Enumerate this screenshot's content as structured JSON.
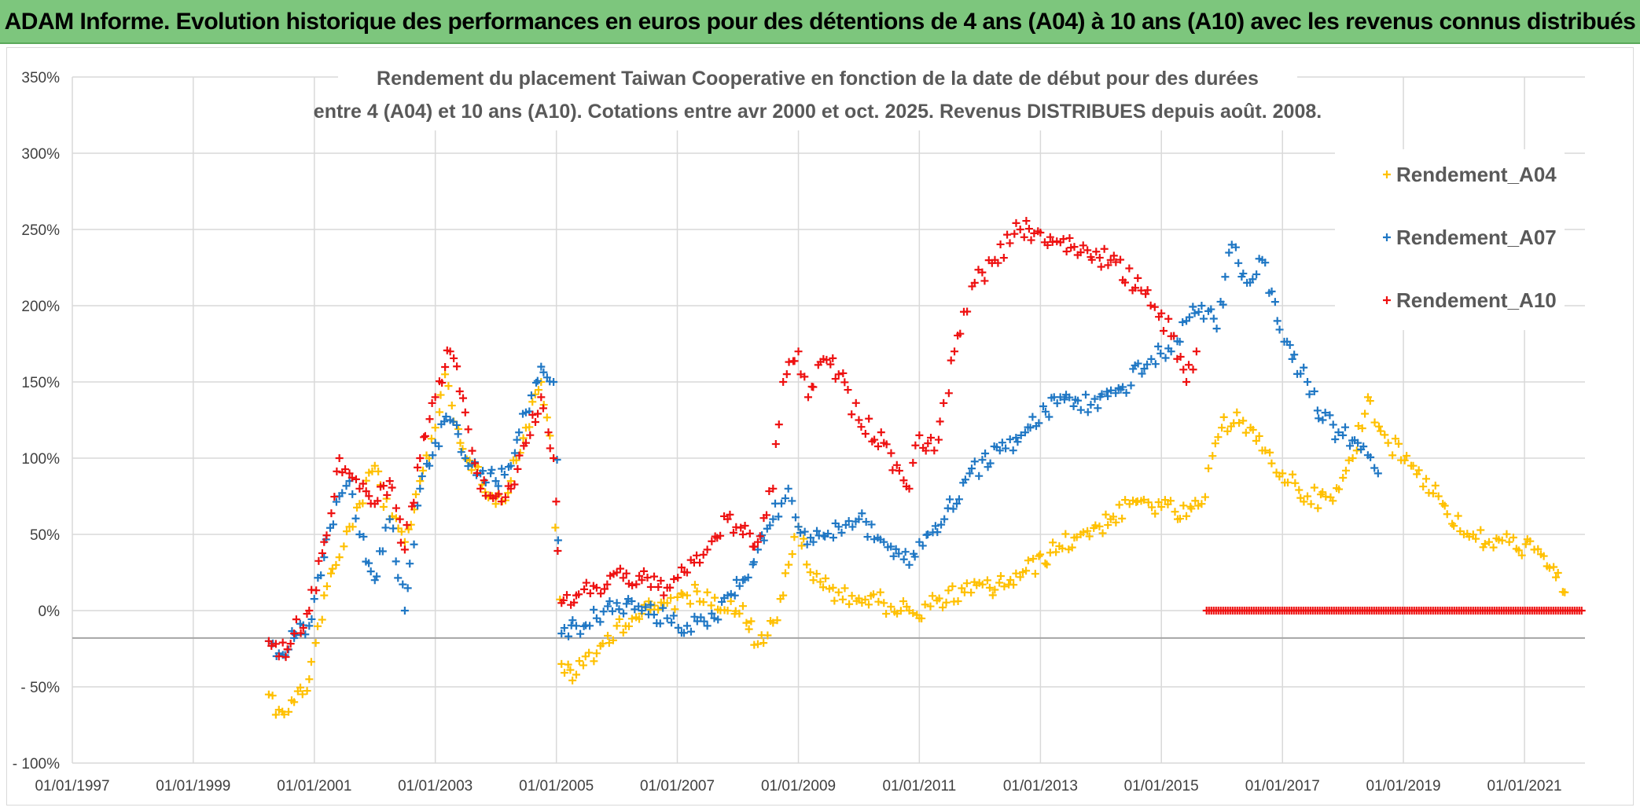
{
  "header": {
    "banner_title": "ADAM Informe. Evolution historique des performances en euros pour des détentions de 4 ans (A04) à 10 ans (A10) avec les revenus connus distribués"
  },
  "chart_data": {
    "type": "scatter",
    "title": [
      "Rendement du placement Taiwan Cooperative  en fonction de la date de début pour des durées",
      "entre 4 (A04) et 10 ans (A10). Cotations entre avr 2000 et oct. 2025. Revenus DISTRIBUES depuis août. 2008."
    ],
    "xlabel": "",
    "ylabel": "",
    "x_ticks": [
      "01/01/1997",
      "01/01/1999",
      "01/01/2001",
      "01/01/2003",
      "01/01/2005",
      "01/01/2007",
      "01/01/2009",
      "01/01/2011",
      "01/01/2013",
      "01/01/2015",
      "01/01/2017",
      "01/01/2019",
      "01/01/2021"
    ],
    "y_ticks": [
      {
        "value": 350,
        "label": "350%"
      },
      {
        "value": 300,
        "label": "300%"
      },
      {
        "value": 250,
        "label": "250%"
      },
      {
        "value": 200,
        "label": "200%"
      },
      {
        "value": 150,
        "label": "150%"
      },
      {
        "value": 100,
        "label": "100%"
      },
      {
        "value": 50,
        "label": "50%"
      },
      {
        "value": 0,
        "label": "0%"
      },
      {
        "value": -50,
        "label": "- 50%"
      },
      {
        "value": -100,
        "label": "- 100%"
      }
    ],
    "xlim": [
      "1997-01-01",
      "2022-01-01"
    ],
    "ylim": [
      -100,
      350
    ],
    "reference_line_y": -18,
    "marker": "+",
    "grid": true,
    "legend_position": "right",
    "series": [
      {
        "name": "Rendement_A04",
        "color": "#ffc000",
        "x": [
          "2000-04-01",
          "2000-06-01",
          "2000-09-01",
          "2000-12-01",
          "2001-03-01",
          "2001-06-01",
          "2001-08-01",
          "2001-10-01",
          "2002-01-01",
          "2002-04-01",
          "2002-07-01",
          "2002-10-01",
          "2003-01-01",
          "2003-03-01",
          "2003-06-01",
          "2003-09-01",
          "2004-01-01",
          "2004-04-01",
          "2004-07-01",
          "2004-10-01",
          "2004-12-15",
          "2005-02-01",
          "2005-05-01",
          "2005-09-01",
          "2006-01-01",
          "2006-06-01",
          "2006-11-01",
          "2007-03-01",
          "2007-07-01",
          "2007-11-01",
          "2008-02-01",
          "2008-05-01",
          "2008-08-01",
          "2008-10-01",
          "2009-01-01",
          "2009-04-01",
          "2009-09-01",
          "2010-01-01",
          "2010-06-01",
          "2010-11-01",
          "2011-01-01",
          "2011-05-01",
          "2011-10-01",
          "2012-03-01",
          "2012-09-01",
          "2013-03-01",
          "2013-09-01",
          "2014-03-01",
          "2014-09-01",
          "2015-01-01",
          "2015-06-01",
          "2015-09-01",
          "2016-01-01",
          "2016-04-01",
          "2016-09-01",
          "2017-01-01",
          "2017-06-01",
          "2017-11-01",
          "2018-03-01",
          "2018-06-01",
          "2018-10-01",
          "2019-03-01",
          "2019-08-01",
          "2020-01-01",
          "2020-06-01",
          "2020-10-01",
          "2021-03-01",
          "2021-06-01",
          "2021-09-01"
        ],
        "y": [
          -55,
          -65,
          -60,
          -45,
          10,
          35,
          55,
          70,
          95,
          60,
          45,
          85,
          120,
          155,
          110,
          95,
          70,
          85,
          120,
          150,
          100,
          -35,
          -42,
          -28,
          -10,
          -2,
          5,
          10,
          12,
          0,
          3,
          -22,
          -8,
          10,
          55,
          20,
          12,
          8,
          5,
          0,
          -5,
          8,
          12,
          15,
          22,
          38,
          50,
          60,
          72,
          68,
          62,
          70,
          120,
          130,
          105,
          90,
          75,
          72,
          100,
          140,
          110,
          95,
          75,
          50,
          45,
          45,
          40,
          28,
          12
        ]
      },
      {
        "name": "Rendement_A07",
        "color": "#1f77c4",
        "x": [
          "2000-04-01",
          "2000-06-01",
          "2000-09-01",
          "2000-12-01",
          "2001-03-01",
          "2001-06-01",
          "2001-08-01",
          "2001-10-01",
          "2002-01-01",
          "2002-04-01",
          "2002-07-01",
          "2002-10-01",
          "2003-01-01",
          "2003-04-01",
          "2003-07-01",
          "2003-10-01",
          "2004-01-01",
          "2004-04-01",
          "2004-07-01",
          "2004-10-01",
          "2004-12-15",
          "2005-02-01",
          "2005-05-01",
          "2005-09-01",
          "2006-01-01",
          "2006-06-01",
          "2006-11-01",
          "2007-03-01",
          "2007-07-01",
          "2007-11-01",
          "2008-02-01",
          "2008-05-01",
          "2008-08-01",
          "2008-11-01",
          "2009-01-01",
          "2009-04-01",
          "2009-09-01",
          "2010-01-01",
          "2010-06-01",
          "2010-11-01",
          "2011-01-01",
          "2011-06-01",
          "2011-11-01",
          "2012-05-01",
          "2012-11-01",
          "2013-05-01",
          "2013-11-01",
          "2014-05-01",
          "2014-11-01",
          "2015-03-01",
          "2015-06-01",
          "2015-09-01",
          "2015-12-01",
          "2016-03-01",
          "2016-06-01",
          "2016-09-01",
          "2016-12-01",
          "2017-03-01",
          "2017-06-01",
          "2017-09-01",
          "2018-01-01",
          "2018-04-01",
          "2018-08-01"
        ],
        "y": [
          -20,
          -28,
          -18,
          -10,
          35,
          75,
          85,
          50,
          20,
          60,
          0,
          80,
          110,
          125,
          100,
          90,
          85,
          95,
          130,
          160,
          150,
          -15,
          -10,
          -5,
          5,
          0,
          -5,
          -10,
          -10,
          10,
          20,
          40,
          60,
          80,
          55,
          45,
          55,
          60,
          45,
          30,
          45,
          60,
          90,
          105,
          120,
          140,
          135,
          145,
          165,
          170,
          190,
          200,
          185,
          240,
          215,
          230,
          190,
          165,
          150,
          125,
          115,
          110,
          90
        ]
      },
      {
        "name": "Rendement_A10",
        "color": "#ee1111",
        "x": [
          "2000-04-01",
          "2000-06-01",
          "2000-09-01",
          "2000-12-01",
          "2001-03-01",
          "2001-06-01",
          "2001-08-01",
          "2001-10-01",
          "2002-01-01",
          "2002-04-01",
          "2002-07-01",
          "2002-10-01",
          "2003-01-01",
          "2003-04-01",
          "2003-07-01",
          "2003-10-01",
          "2004-01-01",
          "2004-04-01",
          "2004-07-01",
          "2004-10-01",
          "2004-12-15",
          "2005-02-01",
          "2005-05-01",
          "2005-09-01",
          "2006-01-01",
          "2006-06-01",
          "2006-11-01",
          "2007-03-01",
          "2007-07-01",
          "2007-11-01",
          "2008-02-01",
          "2008-05-01",
          "2008-08-01",
          "2008-10-01",
          "2009-01-01",
          "2009-03-01",
          "2009-06-01",
          "2009-09-01",
          "2010-01-01",
          "2010-06-01",
          "2010-11-01",
          "2011-01-01",
          "2011-04-01",
          "2011-08-01",
          "2011-12-01",
          "2012-04-01",
          "2012-09-01",
          "2013-03-01",
          "2013-09-01",
          "2014-03-01",
          "2014-09-01",
          "2015-01-01",
          "2015-03-01",
          "2015-06-01",
          "2015-08-01"
        ],
        "y": [
          -20,
          -30,
          -15,
          0,
          45,
          100,
          90,
          80,
          70,
          85,
          40,
          100,
          140,
          170,
          130,
          80,
          75,
          80,
          110,
          140,
          100,
          5,
          10,
          15,
          25,
          20,
          15,
          25,
          40,
          60,
          50,
          45,
          80,
          150,
          170,
          140,
          165,
          155,
          125,
          110,
          80,
          115,
          105,
          170,
          215,
          230,
          250,
          245,
          235,
          230,
          210,
          195,
          180,
          150,
          170
        ]
      },
      {
        "name": "",
        "color": "#ee1111",
        "x": [
          "2015-10-01",
          "2021-12-15"
        ],
        "y": [
          0,
          0
        ]
      }
    ]
  }
}
